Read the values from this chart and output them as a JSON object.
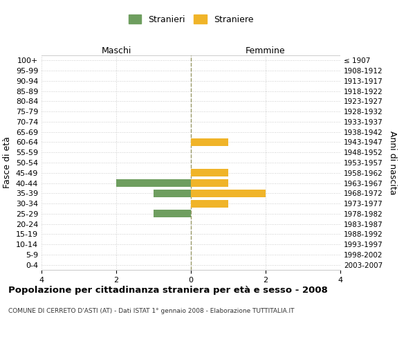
{
  "age_groups": [
    "100+",
    "95-99",
    "90-94",
    "85-89",
    "80-84",
    "75-79",
    "70-74",
    "65-69",
    "60-64",
    "55-59",
    "50-54",
    "45-49",
    "40-44",
    "35-39",
    "30-34",
    "25-29",
    "20-24",
    "15-19",
    "10-14",
    "5-9",
    "0-4"
  ],
  "birth_years": [
    "≤ 1907",
    "1908-1912",
    "1913-1917",
    "1918-1922",
    "1923-1927",
    "1928-1932",
    "1933-1937",
    "1938-1942",
    "1943-1947",
    "1948-1952",
    "1953-1957",
    "1958-1962",
    "1963-1967",
    "1968-1972",
    "1973-1977",
    "1978-1982",
    "1983-1987",
    "1988-1992",
    "1993-1997",
    "1998-2002",
    "2003-2007"
  ],
  "maschi": [
    0,
    0,
    0,
    0,
    0,
    0,
    0,
    0,
    0,
    0,
    0,
    0,
    -2,
    -1,
    0,
    -1,
    0,
    0,
    0,
    0,
    0
  ],
  "femmine": [
    0,
    0,
    0,
    0,
    0,
    0,
    0,
    0,
    1,
    0,
    0,
    1,
    1,
    2,
    1,
    0,
    0,
    0,
    0,
    0,
    0
  ],
  "maschi_color": "#6e9e5f",
  "femmine_color": "#f0b429",
  "title": "Popolazione per cittadinanza straniera per età e sesso - 2008",
  "subtitle": "COMUNE DI CERRETO D'ASTI (AT) - Dati ISTAT 1° gennaio 2008 - Elaborazione TUTTITALIA.IT",
  "ylabel_left": "Fasce di età",
  "ylabel_right": "Anni di nascita",
  "xlabel_maschi": "Maschi",
  "xlabel_femmine": "Femmine",
  "legend_maschi": "Stranieri",
  "legend_femmine": "Straniere",
  "xlim": [
    -4,
    4
  ],
  "xticks": [
    -4,
    -2,
    0,
    2,
    4
  ],
  "xticklabels": [
    "4",
    "2",
    "0",
    "2",
    "4"
  ],
  "bg_color": "#ffffff",
  "grid_color": "#cccccc",
  "bar_height": 0.75
}
